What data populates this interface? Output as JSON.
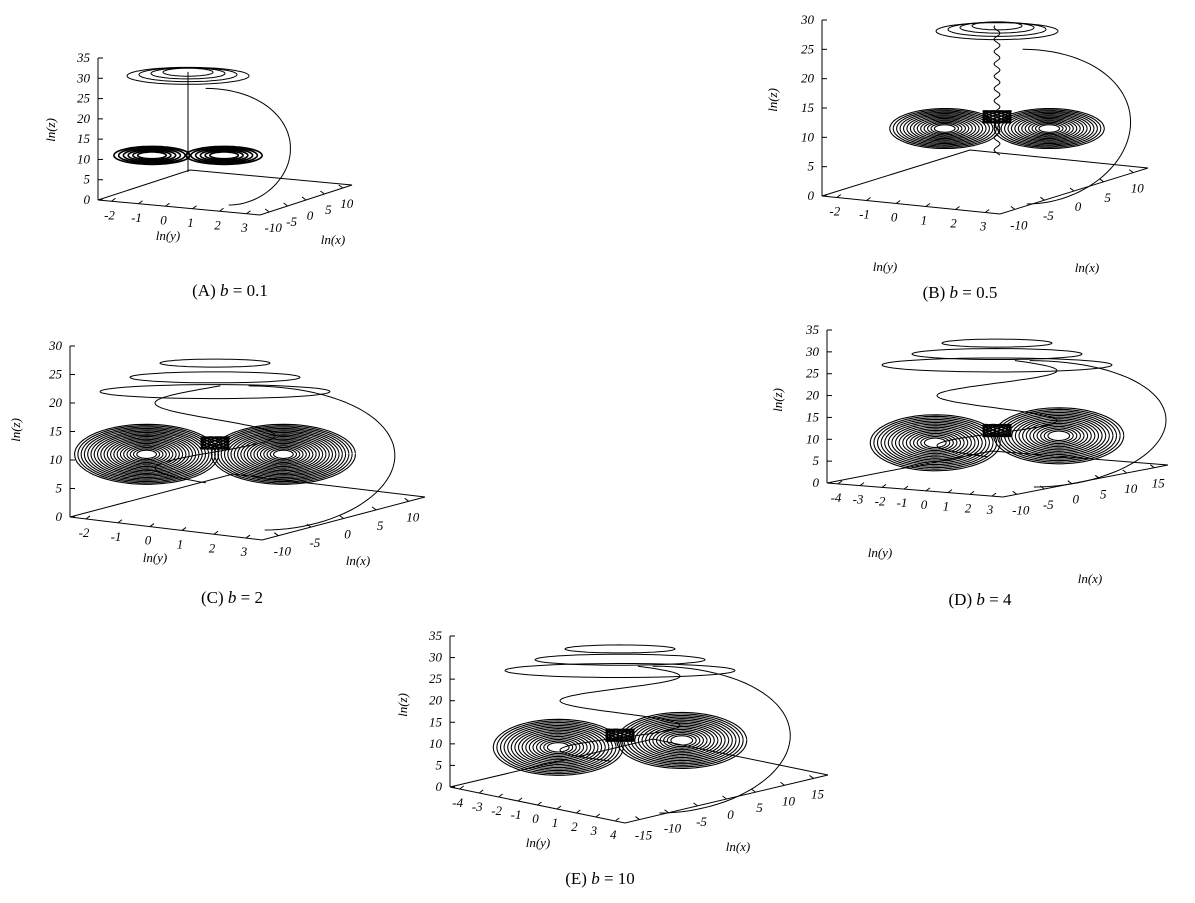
{
  "chart_data": [
    {
      "type": "line",
      "panel": "A",
      "caption": {
        "label": "(A)",
        "param": "b",
        "value": "0.1"
      },
      "b": 0.1,
      "xlabel": "ln(x)",
      "ylabel": "ln(y)",
      "zlabel": "ln(z)",
      "x_ticks": [
        "-10",
        "-5",
        "0",
        "5",
        "10"
      ],
      "y_ticks": [
        "-2",
        "-1",
        "0",
        "1",
        "2",
        "3"
      ],
      "z_ticks": [
        "0",
        "5",
        "10",
        "15",
        "20",
        "25",
        "30",
        "35"
      ],
      "zlim": [
        0,
        35
      ]
    },
    {
      "type": "line",
      "panel": "B",
      "caption": {
        "label": "(B)",
        "param": "b",
        "value": "0.5"
      },
      "b": 0.5,
      "xlabel": "ln(x)",
      "ylabel": "ln(y)",
      "zlabel": "ln(z)",
      "x_ticks": [
        "-10",
        "-5",
        "0",
        "5",
        "10"
      ],
      "y_ticks": [
        "-2",
        "-1",
        "0",
        "1",
        "2",
        "3"
      ],
      "z_ticks": [
        "0",
        "5",
        "10",
        "15",
        "20",
        "25",
        "30"
      ],
      "zlim": [
        0,
        30
      ]
    },
    {
      "type": "line",
      "panel": "C",
      "caption": {
        "label": "(C)",
        "param": "b",
        "value": "2"
      },
      "b": 2,
      "xlabel": "ln(x)",
      "ylabel": "ln(y)",
      "zlabel": "ln(z)",
      "x_ticks": [
        "-10",
        "-5",
        "0",
        "5",
        "10"
      ],
      "y_ticks": [
        "-2",
        "-1",
        "0",
        "1",
        "2",
        "3"
      ],
      "z_ticks": [
        "0",
        "5",
        "10",
        "15",
        "20",
        "25",
        "30"
      ],
      "zlim": [
        0,
        30
      ]
    },
    {
      "type": "line",
      "panel": "D",
      "caption": {
        "label": "(D)",
        "param": "b",
        "value": "4"
      },
      "b": 4,
      "xlabel": "ln(x)",
      "ylabel": "ln(y)",
      "zlabel": "ln(z)",
      "x_ticks": [
        "-10",
        "-5",
        "0",
        "5",
        "10",
        "15"
      ],
      "y_ticks": [
        "-4",
        "-3",
        "-2",
        "-1",
        "0",
        "1",
        "2",
        "3"
      ],
      "z_ticks": [
        "0",
        "5",
        "10",
        "15",
        "20",
        "25",
        "30",
        "35"
      ],
      "zlim": [
        0,
        35
      ]
    },
    {
      "type": "line",
      "panel": "E",
      "caption": {
        "label": "(E)",
        "param": "b",
        "value": "10"
      },
      "b": 10,
      "xlabel": "ln(x)",
      "ylabel": "ln(y)",
      "zlabel": "ln(z)",
      "x_ticks": [
        "-15",
        "-10",
        "-5",
        "0",
        "5",
        "10",
        "15"
      ],
      "y_ticks": [
        "-4",
        "-3",
        "-2",
        "-1",
        "0",
        "1",
        "2",
        "3",
        "4"
      ],
      "z_ticks": [
        "0",
        "5",
        "10",
        "15",
        "20",
        "25",
        "30",
        "35"
      ],
      "zlim": [
        0,
        35
      ]
    }
  ]
}
